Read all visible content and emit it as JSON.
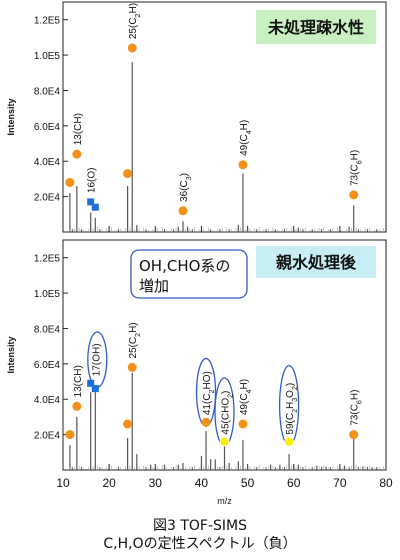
{
  "caption": {
    "line1": "図3 TOF-SIMS",
    "line2": "C,H,Oの定性スペクトル（負）"
  },
  "colors": {
    "orange_marker": "#f39018",
    "blue_marker": "#1a6fd8",
    "yellow_marker": "#ffee00",
    "highlight_ellipse": "#2c5fc4",
    "label_green_bg": "#c8f0c0",
    "label_cyan_bg": "#c6eef4",
    "spectrum_line": "#555555"
  },
  "chart_data": [
    {
      "type": "line",
      "id": "top",
      "label": "未処理疎水性",
      "ylabel": "Intensity",
      "xlim": [
        10,
        80
      ],
      "ylim": [
        0,
        130000
      ],
      "yticks": [
        20000,
        40000,
        60000,
        80000,
        100000,
        120000
      ],
      "ytick_labels": [
        "2.0E4",
        "4.0E4",
        "6.0E4",
        "8.0E4",
        "1.0E5",
        "1.2E5"
      ],
      "peaks": [
        {
          "x": 11.5,
          "y": 22000
        },
        {
          "x": 13.0,
          "y": 26000
        },
        {
          "x": 16.0,
          "y": 11000
        },
        {
          "x": 17.0,
          "y": 8000
        },
        {
          "x": 24.0,
          "y": 26000
        },
        {
          "x": 25.0,
          "y": 96000
        },
        {
          "x": 26.0,
          "y": 4000
        },
        {
          "x": 35.0,
          "y": 3000
        },
        {
          "x": 36.0,
          "y": 6000
        },
        {
          "x": 37.0,
          "y": 3000
        },
        {
          "x": 48.0,
          "y": 4000
        },
        {
          "x": 49.0,
          "y": 33000
        },
        {
          "x": 50.0,
          "y": 3000
        },
        {
          "x": 60.0,
          "y": 2000
        },
        {
          "x": 61.0,
          "y": 2500
        },
        {
          "x": 72.0,
          "y": 3000
        },
        {
          "x": 73.0,
          "y": 15000
        }
      ],
      "markers": [
        {
          "x": 11.5,
          "y": 28000,
          "shape": "circle",
          "color": "orange"
        },
        {
          "x": 13.0,
          "y": 44000,
          "shape": "circle",
          "color": "orange"
        },
        {
          "x": 16.0,
          "y": 17000,
          "shape": "square",
          "color": "blue"
        },
        {
          "x": 17.0,
          "y": 14000,
          "shape": "square",
          "color": "blue"
        },
        {
          "x": 24.0,
          "y": 33000,
          "shape": "circle",
          "color": "orange"
        },
        {
          "x": 25.0,
          "y": 104000,
          "shape": "circle",
          "color": "orange"
        },
        {
          "x": 36.0,
          "y": 12000,
          "shape": "circle",
          "color": "orange"
        },
        {
          "x": 49.0,
          "y": 38000,
          "shape": "circle",
          "color": "orange"
        },
        {
          "x": 73.0,
          "y": 21000,
          "shape": "circle",
          "color": "orange"
        }
      ],
      "annotations": [
        {
          "text": "13(CH)",
          "x": 13.0,
          "y": 49000
        },
        {
          "text": "16(O)",
          "x": 16.0,
          "y": 22000
        },
        {
          "text": "25(C2H)",
          "x": 25.0,
          "y": 109000
        },
        {
          "text": "36(C3)",
          "x": 36.0,
          "y": 17000
        },
        {
          "text": "49(C4H)",
          "x": 49.0,
          "y": 43000
        },
        {
          "text": "73(C6H)",
          "x": 73.0,
          "y": 26000
        }
      ]
    },
    {
      "type": "line",
      "id": "bottom",
      "label": "親水処理後",
      "note": "OH,CHO系の\n増加",
      "ylabel": "Intensity",
      "xlabel": "m/z",
      "xlim": [
        10,
        80
      ],
      "xticks": [
        10,
        20,
        30,
        40,
        50,
        60,
        70,
        80
      ],
      "ylim": [
        0,
        130000
      ],
      "yticks": [
        20000,
        40000,
        60000,
        80000,
        100000,
        120000
      ],
      "ytick_labels": [
        "2.0E4",
        "4.0E4",
        "6.0E4",
        "8.0E4",
        "1.0E5",
        "1.2E5"
      ],
      "peaks": [
        {
          "x": 11.5,
          "y": 14000
        },
        {
          "x": 13.0,
          "y": 30000
        },
        {
          "x": 16.0,
          "y": 44000
        },
        {
          "x": 17.0,
          "y": 45000
        },
        {
          "x": 24.0,
          "y": 18000
        },
        {
          "x": 25.0,
          "y": 55000
        },
        {
          "x": 26.0,
          "y": 9000
        },
        {
          "x": 29.0,
          "y": 3000
        },
        {
          "x": 32.0,
          "y": 3000
        },
        {
          "x": 35.0,
          "y": 3000
        },
        {
          "x": 36.0,
          "y": 4000
        },
        {
          "x": 40.0,
          "y": 8000
        },
        {
          "x": 41.0,
          "y": 22000
        },
        {
          "x": 42.0,
          "y": 6000
        },
        {
          "x": 43.0,
          "y": 6000
        },
        {
          "x": 45.0,
          "y": 14000
        },
        {
          "x": 46.0,
          "y": 4000
        },
        {
          "x": 48.0,
          "y": 5000
        },
        {
          "x": 49.0,
          "y": 17000
        },
        {
          "x": 50.0,
          "y": 3000
        },
        {
          "x": 55.0,
          "y": 3000
        },
        {
          "x": 57.0,
          "y": 3000
        },
        {
          "x": 59.0,
          "y": 9000
        },
        {
          "x": 60.0,
          "y": 3000
        },
        {
          "x": 61.0,
          "y": 3000
        },
        {
          "x": 65.0,
          "y": 2500
        },
        {
          "x": 67.0,
          "y": 2000
        },
        {
          "x": 71.0,
          "y": 2500
        },
        {
          "x": 73.0,
          "y": 18000
        },
        {
          "x": 75.0,
          "y": 2000
        },
        {
          "x": 77.0,
          "y": 1500
        }
      ],
      "markers": [
        {
          "x": 11.5,
          "y": 20000,
          "shape": "circle",
          "color": "orange"
        },
        {
          "x": 13.0,
          "y": 36000,
          "shape": "circle",
          "color": "orange"
        },
        {
          "x": 16.0,
          "y": 49000,
          "shape": "square",
          "color": "blue"
        },
        {
          "x": 17.0,
          "y": 46000,
          "shape": "square",
          "color": "blue"
        },
        {
          "x": 24.0,
          "y": 26000,
          "shape": "circle",
          "color": "orange"
        },
        {
          "x": 25.0,
          "y": 58000,
          "shape": "circle",
          "color": "orange"
        },
        {
          "x": 41.0,
          "y": 27000,
          "shape": "circle",
          "color": "orange"
        },
        {
          "x": 45.0,
          "y": 16000,
          "shape": "circle",
          "color": "yellow"
        },
        {
          "x": 49.0,
          "y": 26000,
          "shape": "circle",
          "color": "orange"
        },
        {
          "x": 59.0,
          "y": 16000,
          "shape": "circle",
          "color": "yellow"
        },
        {
          "x": 73.0,
          "y": 20000,
          "shape": "circle",
          "color": "orange"
        }
      ],
      "annotations": [
        {
          "text": "13(CH)",
          "x": 13.0,
          "y": 41000
        },
        {
          "text": "17(OH)",
          "x": 17.0,
          "y": 53000,
          "highlight": true
        },
        {
          "text": "25(C2H)",
          "x": 25.0,
          "y": 63000
        },
        {
          "text": "41(C2HO)",
          "x": 41.0,
          "y": 31000,
          "highlight": true
        },
        {
          "text": "45(CHO2)",
          "x": 45.0,
          "y": 20000,
          "highlight": true
        },
        {
          "text": "49(C4H)",
          "x": 49.0,
          "y": 31000
        },
        {
          "text": "59(C2H3O2)",
          "x": 59.0,
          "y": 20000,
          "highlight": true
        },
        {
          "text": "73(C6H)",
          "x": 73.0,
          "y": 25000
        }
      ]
    }
  ]
}
